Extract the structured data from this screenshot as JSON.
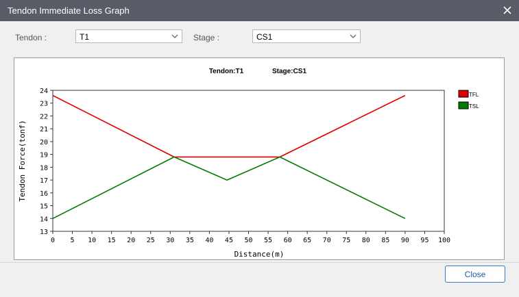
{
  "window": {
    "title": "Tendon Immediate Loss Graph"
  },
  "filters": {
    "tendon_label": "Tendon :",
    "tendon_value": "T1",
    "stage_label": "Stage :",
    "stage_value": "CS1"
  },
  "chart_data": {
    "type": "line",
    "title": "Tendon:T1",
    "subtitle": "Stage:CS1",
    "xlabel": "Distance(m)",
    "ylabel": "Tendon Force(tonf)",
    "xlim": [
      0,
      100
    ],
    "ylim": [
      13,
      24
    ],
    "xticks": [
      0,
      5,
      10,
      15,
      20,
      25,
      30,
      35,
      40,
      45,
      50,
      55,
      60,
      65,
      70,
      75,
      80,
      85,
      90,
      95,
      100
    ],
    "yticks": [
      13,
      14,
      15,
      16,
      17,
      18,
      19,
      20,
      21,
      22,
      23,
      24
    ],
    "grid": true,
    "legend_position": "top-right",
    "series": [
      {
        "name": "TFL",
        "color": "#e00000",
        "x": [
          0,
          31,
          58,
          90
        ],
        "y": [
          23.6,
          18.8,
          18.8,
          23.6
        ]
      },
      {
        "name": "TSL",
        "color": "#007a00",
        "x": [
          0,
          31,
          44.5,
          58,
          90
        ],
        "y": [
          14.0,
          18.8,
          17.0,
          18.8,
          14.0
        ]
      }
    ]
  },
  "buttons": {
    "close_label": "Close"
  }
}
